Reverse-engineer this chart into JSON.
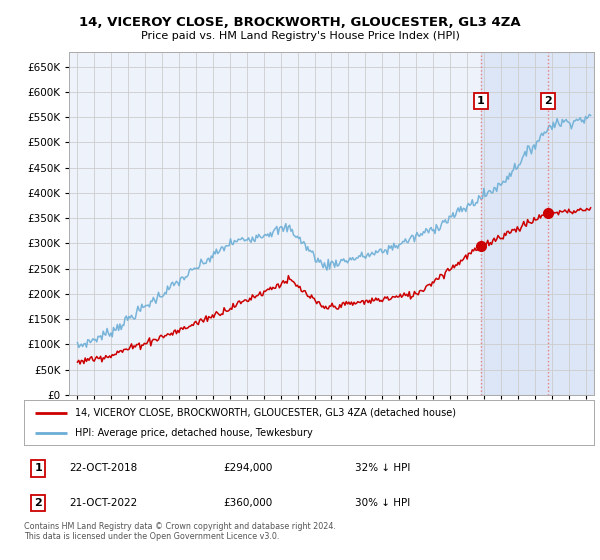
{
  "title": "14, VICEROY CLOSE, BROCKWORTH, GLOUCESTER, GL3 4ZA",
  "subtitle": "Price paid vs. HM Land Registry's House Price Index (HPI)",
  "hpi_label": "HPI: Average price, detached house, Tewkesbury",
  "property_label": "14, VICEROY CLOSE, BROCKWORTH, GLOUCESTER, GL3 4ZA (detached house)",
  "footer": "Contains HM Land Registry data © Crown copyright and database right 2024.\nThis data is licensed under the Open Government Licence v3.0.",
  "sale1_date": "22-OCT-2018",
  "sale1_price": "£294,000",
  "sale1_hpi": "32% ↓ HPI",
  "sale2_date": "21-OCT-2022",
  "sale2_price": "£360,000",
  "sale2_hpi": "30% ↓ HPI",
  "sale1_year": 2018.81,
  "sale2_year": 2022.81,
  "sale1_value": 294000,
  "sale2_value": 360000,
  "ylim_min": 0,
  "ylim_max": 680000,
  "yticks": [
    0,
    50000,
    100000,
    150000,
    200000,
    250000,
    300000,
    350000,
    400000,
    450000,
    500000,
    550000,
    600000,
    650000
  ],
  "hpi_color": "#6baed6",
  "property_color": "#cc0000",
  "vline_color": "#e88080",
  "grid_color": "#cccccc",
  "plot_bg": "#eef2fb",
  "shade_color": "#c8d8f0",
  "xlim_min": 1994.5,
  "xlim_max": 2025.5
}
